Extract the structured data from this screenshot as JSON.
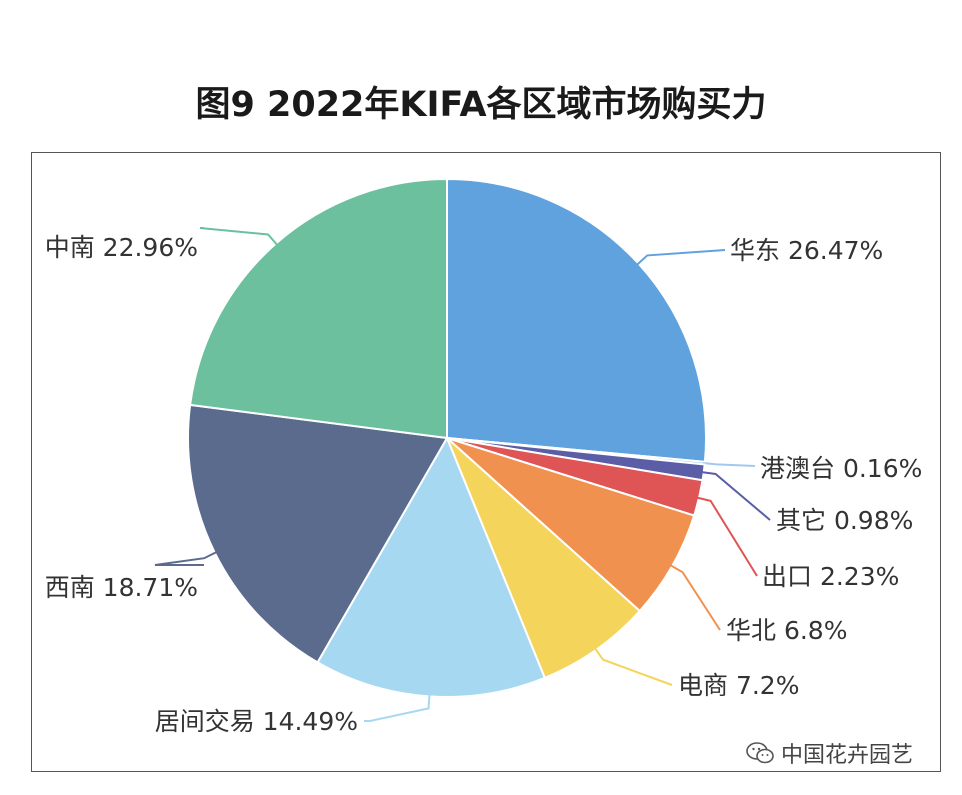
{
  "title": "图9  2022年KIFA各区域市场购买力",
  "watermark": {
    "text": "中国花卉园艺",
    "icon": "wechat-icon"
  },
  "chart_data": {
    "type": "pie",
    "title": "图9  2022年KIFA各区域市场购买力",
    "start_angle_deg": 0,
    "direction": "clockwise",
    "slices": [
      {
        "name": "华东",
        "value": 26.47,
        "label": "华东 26.47%",
        "color": "#5fa2dd"
      },
      {
        "name": "港澳台",
        "value": 0.16,
        "label": "港澳台 0.16%",
        "color": "#9fc9ee"
      },
      {
        "name": "其它",
        "value": 0.98,
        "label": "其它 0.98%",
        "color": "#5b5ea6"
      },
      {
        "name": "出口",
        "value": 2.23,
        "label": "出口 2.23%",
        "color": "#df5454"
      },
      {
        "name": "华北",
        "value": 6.8,
        "label": "华北 6.8%",
        "color": "#f0914f"
      },
      {
        "name": "电商",
        "value": 7.2,
        "label": "电商 7.2%",
        "color": "#f5d45c"
      },
      {
        "name": "居间交易",
        "value": 14.49,
        "label": "居间交易 14.49%",
        "color": "#a7d8f2"
      },
      {
        "name": "西南",
        "value": 18.71,
        "label": "西南 18.71%",
        "color": "#5a6b8e"
      },
      {
        "name": "中南",
        "value": 22.96,
        "label": "中南 22.96%",
        "color": "#6cc09e"
      }
    ]
  }
}
